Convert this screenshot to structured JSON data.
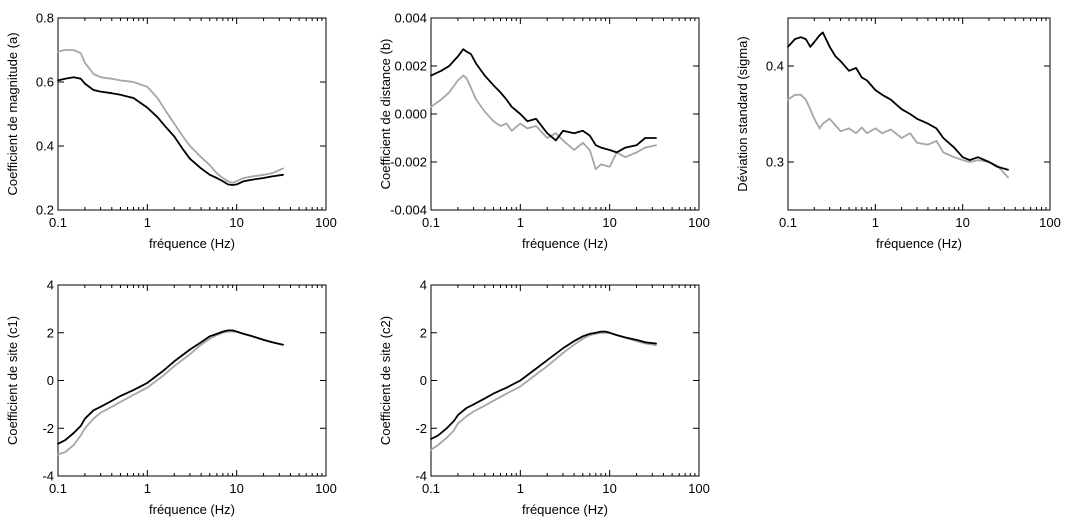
{
  "colors": {
    "black_series": "#000000",
    "gray_series": "#a6a6a6"
  },
  "chart_data": [
    {
      "type": "line",
      "xlabel": "fréquence (Hz)",
      "ylabel": "Coefficient de magnitude (a)",
      "xscale": "log",
      "xlim": [
        0.1,
        100
      ],
      "ylim": [
        0.2,
        0.8
      ],
      "xticks": [
        0.1,
        1,
        10,
        100
      ],
      "xtick_labels": [
        "0.1",
        "1",
        "10",
        "100"
      ],
      "yticks": [
        0.2,
        0.4,
        0.6,
        0.8
      ],
      "ytick_labels": [
        "0.2",
        "0.4",
        "0.6",
        "0.8"
      ],
      "grid": false,
      "series": [
        {
          "color": "#a6a6a6",
          "x": [
            0.1,
            0.12,
            0.15,
            0.18,
            0.2,
            0.25,
            0.3,
            0.4,
            0.5,
            0.7,
            1,
            1.3,
            1.6,
            2,
            2.5,
            3,
            4,
            5,
            6,
            7,
            8,
            9,
            10,
            12,
            15,
            20,
            25,
            33
          ],
          "y": [
            0.695,
            0.7,
            0.7,
            0.69,
            0.66,
            0.625,
            0.615,
            0.61,
            0.605,
            0.6,
            0.585,
            0.55,
            0.51,
            0.47,
            0.43,
            0.4,
            0.365,
            0.34,
            0.315,
            0.3,
            0.29,
            0.285,
            0.29,
            0.3,
            0.305,
            0.31,
            0.315,
            0.33
          ]
        },
        {
          "color": "#000000",
          "x": [
            0.1,
            0.12,
            0.15,
            0.18,
            0.2,
            0.25,
            0.3,
            0.4,
            0.5,
            0.7,
            1,
            1.3,
            1.6,
            2,
            2.5,
            3,
            4,
            5,
            6,
            7,
            8,
            9,
            10,
            12,
            15,
            20,
            25,
            33
          ],
          "y": [
            0.605,
            0.61,
            0.615,
            0.61,
            0.595,
            0.575,
            0.57,
            0.565,
            0.56,
            0.55,
            0.52,
            0.49,
            0.46,
            0.43,
            0.39,
            0.36,
            0.33,
            0.31,
            0.3,
            0.29,
            0.28,
            0.278,
            0.28,
            0.29,
            0.295,
            0.3,
            0.305,
            0.31
          ]
        }
      ]
    },
    {
      "type": "line",
      "xlabel": "fréquence (Hz)",
      "ylabel": "Coefficient de distance (b)",
      "xscale": "log",
      "xlim": [
        0.1,
        100
      ],
      "ylim": [
        -0.004,
        0.004
      ],
      "xticks": [
        0.1,
        1,
        10,
        100
      ],
      "xtick_labels": [
        "0.1",
        "1",
        "10",
        "100"
      ],
      "yticks": [
        -0.004,
        -0.002,
        0,
        0.002,
        0.004
      ],
      "ytick_labels": [
        "-0.004",
        "-0.002",
        "0.000",
        "0.002",
        "0.004"
      ],
      "grid": false,
      "series": [
        {
          "color": "#a6a6a6",
          "x": [
            0.1,
            0.13,
            0.16,
            0.2,
            0.23,
            0.25,
            0.28,
            0.32,
            0.4,
            0.5,
            0.6,
            0.7,
            0.8,
            1,
            1.2,
            1.5,
            2,
            2.5,
            3,
            4,
            5,
            6,
            7,
            8,
            10,
            12,
            15,
            20,
            25,
            33
          ],
          "y": [
            0.0003,
            0.0006,
            0.0009,
            0.0014,
            0.0016,
            0.0015,
            0.0011,
            0.0006,
            0.0001,
            -0.0003,
            -0.0005,
            -0.0004,
            -0.0007,
            -0.0004,
            -0.0006,
            -0.0005,
            -0.001,
            -0.0008,
            -0.0011,
            -0.0015,
            -0.0012,
            -0.0015,
            -0.0023,
            -0.0021,
            -0.0022,
            -0.0016,
            -0.0018,
            -0.0016,
            -0.0014,
            -0.0013
          ]
        },
        {
          "color": "#000000",
          "x": [
            0.1,
            0.13,
            0.16,
            0.2,
            0.23,
            0.25,
            0.28,
            0.32,
            0.4,
            0.5,
            0.6,
            0.7,
            0.8,
            1,
            1.2,
            1.5,
            2,
            2.5,
            3,
            4,
            5,
            6,
            7,
            8,
            10,
            12,
            15,
            20,
            25,
            33
          ],
          "y": [
            0.0016,
            0.0018,
            0.002,
            0.0024,
            0.0027,
            0.0026,
            0.0025,
            0.0021,
            0.0016,
            0.0012,
            0.0009,
            0.0006,
            0.0003,
            0.0,
            -0.0003,
            -0.0002,
            -0.0008,
            -0.0011,
            -0.0007,
            -0.0008,
            -0.0007,
            -0.0009,
            -0.0013,
            -0.0014,
            -0.0015,
            -0.0016,
            -0.0014,
            -0.0013,
            -0.001,
            -0.001
          ]
        }
      ]
    },
    {
      "type": "line",
      "xlabel": "fréquence (Hz)",
      "ylabel": "Déviation standard (sigma)",
      "xscale": "log",
      "xlim": [
        0.1,
        100
      ],
      "ylim": [
        0.25,
        0.45
      ],
      "xticks": [
        0.1,
        1,
        10,
        100
      ],
      "xtick_labels": [
        "0.1",
        "1",
        "10",
        "100"
      ],
      "yticks": [
        0.3,
        0.4
      ],
      "ytick_labels": [
        "0.3",
        "0.4"
      ],
      "grid": false,
      "series": [
        {
          "color": "#a6a6a6",
          "x": [
            0.1,
            0.12,
            0.14,
            0.16,
            0.18,
            0.2,
            0.23,
            0.25,
            0.3,
            0.35,
            0.4,
            0.5,
            0.6,
            0.7,
            0.8,
            1,
            1.2,
            1.5,
            2,
            2.5,
            3,
            4,
            5,
            6,
            8,
            10,
            12,
            15,
            20,
            25,
            33
          ],
          "y": [
            0.365,
            0.37,
            0.37,
            0.365,
            0.355,
            0.345,
            0.335,
            0.34,
            0.345,
            0.338,
            0.332,
            0.335,
            0.33,
            0.336,
            0.33,
            0.335,
            0.33,
            0.334,
            0.325,
            0.33,
            0.32,
            0.318,
            0.322,
            0.31,
            0.305,
            0.302,
            0.3,
            0.302,
            0.3,
            0.296,
            0.284
          ]
        },
        {
          "color": "#000000",
          "x": [
            0.1,
            0.12,
            0.14,
            0.16,
            0.18,
            0.2,
            0.23,
            0.25,
            0.3,
            0.35,
            0.4,
            0.5,
            0.6,
            0.7,
            0.8,
            1,
            1.2,
            1.5,
            2,
            2.5,
            3,
            4,
            5,
            6,
            8,
            10,
            12,
            15,
            20,
            25,
            33
          ],
          "y": [
            0.42,
            0.428,
            0.43,
            0.428,
            0.42,
            0.425,
            0.432,
            0.435,
            0.42,
            0.41,
            0.405,
            0.395,
            0.398,
            0.388,
            0.385,
            0.375,
            0.37,
            0.365,
            0.355,
            0.35,
            0.345,
            0.34,
            0.335,
            0.325,
            0.315,
            0.305,
            0.302,
            0.305,
            0.3,
            0.295,
            0.292
          ]
        }
      ]
    },
    {
      "type": "line",
      "xlabel": "fréquence (Hz)",
      "ylabel": "Coefficient de site (c1)",
      "xscale": "log",
      "xlim": [
        0.1,
        100
      ],
      "ylim": [
        -4,
        4
      ],
      "xticks": [
        0.1,
        1,
        10,
        100
      ],
      "xtick_labels": [
        "0.1",
        "1",
        "10",
        "100"
      ],
      "yticks": [
        -4,
        -2,
        0,
        2,
        4
      ],
      "ytick_labels": [
        "-4",
        "-2",
        "0",
        "2",
        "4"
      ],
      "grid": false,
      "series": [
        {
          "color": "#a6a6a6",
          "x": [
            0.1,
            0.12,
            0.15,
            0.18,
            0.2,
            0.25,
            0.3,
            0.4,
            0.5,
            0.7,
            1,
            1.5,
            2,
            3,
            4,
            5,
            6,
            7,
            8,
            9,
            10,
            12,
            15,
            20,
            25,
            33
          ],
          "y": [
            -3.1,
            -3.0,
            -2.7,
            -2.3,
            -2.0,
            -1.6,
            -1.35,
            -1.1,
            -0.9,
            -0.6,
            -0.3,
            0.2,
            0.6,
            1.1,
            1.5,
            1.75,
            1.9,
            2.0,
            2.05,
            2.05,
            2.05,
            1.95,
            1.85,
            1.7,
            1.6,
            1.5
          ]
        },
        {
          "color": "#000000",
          "x": [
            0.1,
            0.12,
            0.15,
            0.18,
            0.2,
            0.25,
            0.3,
            0.4,
            0.5,
            0.7,
            1,
            1.5,
            2,
            3,
            4,
            5,
            6,
            7,
            8,
            9,
            10,
            12,
            15,
            20,
            25,
            33
          ],
          "y": [
            -2.65,
            -2.5,
            -2.2,
            -1.9,
            -1.6,
            -1.25,
            -1.1,
            -0.85,
            -0.65,
            -0.4,
            -0.1,
            0.4,
            0.8,
            1.3,
            1.6,
            1.85,
            1.95,
            2.05,
            2.1,
            2.1,
            2.05,
            1.95,
            1.85,
            1.7,
            1.6,
            1.5
          ]
        }
      ]
    },
    {
      "type": "line",
      "xlabel": "fréquence (Hz)",
      "ylabel": "Coefficient de site (c2)",
      "xscale": "log",
      "xlim": [
        0.1,
        100
      ],
      "ylim": [
        -4,
        4
      ],
      "xticks": [
        0.1,
        1,
        10,
        100
      ],
      "xtick_labels": [
        "0.1",
        "1",
        "10",
        "100"
      ],
      "yticks": [
        -4,
        -2,
        0,
        2,
        4
      ],
      "ytick_labels": [
        "-4",
        "-2",
        "0",
        "2",
        "4"
      ],
      "grid": false,
      "series": [
        {
          "color": "#a6a6a6",
          "x": [
            0.1,
            0.12,
            0.15,
            0.18,
            0.2,
            0.25,
            0.3,
            0.4,
            0.5,
            0.7,
            1,
            1.5,
            2,
            3,
            4,
            5,
            6,
            7,
            8,
            9,
            10,
            12,
            15,
            20,
            25,
            33
          ],
          "y": [
            -2.9,
            -2.7,
            -2.4,
            -2.1,
            -1.8,
            -1.5,
            -1.3,
            -1.05,
            -0.85,
            -0.55,
            -0.25,
            0.25,
            0.6,
            1.15,
            1.5,
            1.75,
            1.9,
            1.95,
            2.0,
            2.0,
            2.0,
            1.9,
            1.8,
            1.65,
            1.55,
            1.48
          ]
        },
        {
          "color": "#000000",
          "x": [
            0.1,
            0.12,
            0.15,
            0.18,
            0.2,
            0.25,
            0.3,
            0.4,
            0.5,
            0.7,
            1,
            1.5,
            2,
            3,
            4,
            5,
            6,
            7,
            8,
            9,
            10,
            12,
            15,
            20,
            25,
            33
          ],
          "y": [
            -2.45,
            -2.3,
            -2.0,
            -1.7,
            -1.45,
            -1.15,
            -1.0,
            -0.75,
            -0.55,
            -0.3,
            0.0,
            0.5,
            0.85,
            1.35,
            1.65,
            1.85,
            1.95,
            2.0,
            2.05,
            2.05,
            2.0,
            1.9,
            1.8,
            1.7,
            1.6,
            1.55
          ]
        }
      ]
    }
  ]
}
